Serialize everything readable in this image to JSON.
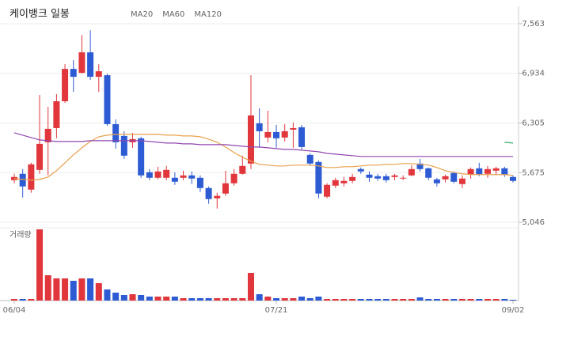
{
  "chart_data": [
    {
      "type": "candlestick",
      "title": "케이뱅크 일봉",
      "categories": [
        "06/04",
        null,
        null,
        null,
        null,
        null,
        null,
        null,
        null,
        null,
        null,
        null,
        null,
        null,
        null,
        null,
        null,
        null,
        null,
        null,
        null,
        null,
        null,
        null,
        null,
        null,
        null,
        null,
        null,
        null,
        null,
        "07/21",
        null,
        null,
        null,
        null,
        null,
        null,
        null,
        null,
        null,
        null,
        null,
        null,
        null,
        null,
        null,
        null,
        null,
        null,
        null,
        null,
        null,
        null,
        null,
        null,
        null,
        null,
        null,
        "09/02"
      ],
      "open": [
        5580,
        5660,
        5460,
        5710,
        6060,
        6240,
        6580,
        6990,
        6940,
        7200,
        6890,
        6910,
        6290,
        6140,
        6060,
        6110,
        5680,
        5610,
        5610,
        5610,
        5610,
        5640,
        5610,
        5480,
        5350,
        5410,
        5540,
        5660,
        5790,
        6300,
        6120,
        6190,
        6120,
        6220,
        6250,
        5900,
        5810,
        5370,
        5510,
        5540,
        5570,
        5720,
        5650,
        5630,
        5630,
        5620,
        5600,
        5640,
        5790,
        5730,
        5590,
        5590,
        5670,
        5530,
        5650,
        5730,
        5660,
        5700,
        5730,
        5620
      ],
      "high": [
        5660,
        5720,
        5800,
        6660,
        6510,
        6670,
        7050,
        7100,
        7420,
        7480,
        7050,
        6930,
        6350,
        6200,
        6180,
        6130,
        5720,
        5750,
        5760,
        5680,
        5700,
        5690,
        5640,
        5500,
        5420,
        5700,
        5720,
        5890,
        6910,
        6490,
        6460,
        6280,
        6290,
        6310,
        6280,
        5920,
        5830,
        5540,
        5610,
        5620,
        5660,
        5740,
        5690,
        5660,
        5660,
        5660,
        5640,
        5770,
        5850,
        5740,
        5610,
        5650,
        5690,
        5640,
        5740,
        5800,
        5760,
        5750,
        5750,
        5640
      ],
      "low": [
        5540,
        5360,
        5420,
        5660,
        5640,
        6110,
        6560,
        6700,
        6930,
        6850,
        6700,
        6270,
        5980,
        5850,
        5990,
        5610,
        5580,
        5590,
        5580,
        5520,
        5580,
        5530,
        5430,
        5280,
        5220,
        5380,
        5510,
        5650,
        5720,
        5990,
        6060,
        5990,
        6070,
        5990,
        5970,
        5760,
        5350,
        5350,
        5480,
        5500,
        5540,
        5660,
        5560,
        5570,
        5550,
        5580,
        5580,
        5630,
        5690,
        5580,
        5500,
        5550,
        5540,
        5480,
        5600,
        5630,
        5610,
        5650,
        5620,
        5550
      ],
      "close": [
        5620,
        5500,
        5780,
        6040,
        6230,
        6580,
        6990,
        6890,
        7200,
        6890,
        6960,
        6290,
        6060,
        5890,
        6100,
        5640,
        5610,
        5690,
        5710,
        5560,
        5640,
        5600,
        5480,
        5340,
        5380,
        5540,
        5660,
        5760,
        6400,
        6200,
        6190,
        6110,
        6200,
        6240,
        6000,
        5790,
        5410,
        5520,
        5580,
        5570,
        5620,
        5690,
        5610,
        5600,
        5580,
        5640,
        5610,
        5720,
        5720,
        5610,
        5540,
        5630,
        5560,
        5600,
        5720,
        5650,
        5720,
        5730,
        5650,
        5570
      ],
      "up_color": "#e0363c",
      "down_color": "#2d5bd3",
      "series": [
        {
          "name": "MA20",
          "color": "#e8a04c",
          "values": [
            5600,
            5590,
            5580,
            5590,
            5620,
            5700,
            5800,
            5900,
            5990,
            6070,
            6130,
            6150,
            6160,
            6160,
            6160,
            6160,
            6160,
            6160,
            6150,
            6150,
            6140,
            6140,
            6130,
            6100,
            6060,
            6000,
            5930,
            5870,
            5820,
            5780,
            5770,
            5760,
            5760,
            5770,
            5770,
            5770,
            5760,
            5740,
            5740,
            5750,
            5750,
            5760,
            5770,
            5770,
            5780,
            5780,
            5790,
            5790,
            5780,
            5770,
            5740,
            5700,
            5680,
            5660,
            5650,
            5650,
            5650,
            5650,
            5650,
            5640
          ]
        },
        {
          "name": "MA60",
          "color": "#9146b0",
          "values": [
            6180,
            6150,
            6120,
            6090,
            6080,
            6070,
            6070,
            6070,
            6070,
            6080,
            6080,
            6080,
            6080,
            6080,
            6080,
            6080,
            6070,
            6060,
            6050,
            6050,
            6040,
            6040,
            6030,
            6030,
            6030,
            6030,
            6020,
            6010,
            6000,
            6000,
            5990,
            5980,
            5970,
            5970,
            5960,
            5950,
            5940,
            5920,
            5910,
            5900,
            5890,
            5880,
            5880,
            5880,
            5880,
            5880,
            5880,
            5880,
            5880,
            5880,
            5880,
            5880,
            5880,
            5880,
            5880,
            5880,
            5880,
            5880,
            5880,
            5880
          ]
        },
        {
          "name": "MA120",
          "color": "#3aa86b",
          "values": [
            null,
            null,
            null,
            null,
            null,
            null,
            null,
            null,
            null,
            null,
            null,
            null,
            null,
            null,
            null,
            null,
            null,
            null,
            null,
            null,
            null,
            null,
            null,
            null,
            null,
            null,
            null,
            null,
            null,
            null,
            null,
            null,
            null,
            null,
            null,
            null,
            null,
            null,
            null,
            null,
            null,
            null,
            null,
            null,
            null,
            null,
            null,
            null,
            null,
            null,
            null,
            null,
            null,
            null,
            null,
            null,
            null,
            null,
            6060,
            6050
          ]
        }
      ],
      "ylim": [
        4966,
        7663
      ],
      "yticks": [
        {
          "value": 7563,
          "label": "7,563"
        },
        {
          "value": 6934,
          "label": "6,934"
        },
        {
          "value": 6305,
          "label": "6,305"
        },
        {
          "value": 5675,
          "label": "5,675"
        },
        {
          "value": 5046,
          "label": "5,046"
        }
      ],
      "grid": true
    },
    {
      "type": "bar",
      "title": "거래량",
      "values": [
        2,
        2,
        2,
        90,
        32,
        28,
        28,
        25,
        28,
        28,
        22,
        14,
        10,
        7,
        8,
        7,
        5,
        5,
        5,
        5,
        3,
        3,
        3,
        3,
        3,
        3,
        3,
        3,
        35,
        8,
        5,
        3,
        3,
        3,
        5,
        3,
        5,
        2,
        2,
        2,
        2,
        2,
        2,
        2,
        2,
        2,
        2,
        2,
        4,
        2,
        2,
        2,
        2,
        2,
        2,
        2,
        2,
        2,
        2,
        1
      ]
    }
  ]
}
